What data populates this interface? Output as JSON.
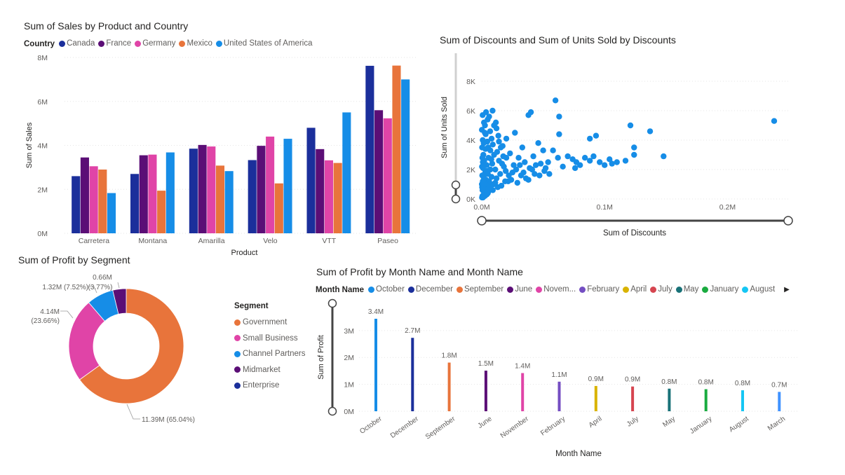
{
  "chart_data": [
    {
      "id": "sales",
      "type": "bar",
      "title": "Sum of Sales by Product and Country",
      "legend_title": "Country",
      "xlabel": "Product",
      "ylabel": "Sum of Sales",
      "categories": [
        "Carretera",
        "Montana",
        "Amarilla",
        "Velo",
        "VTT",
        "Paseo"
      ],
      "ylim": [
        0,
        8000000
      ],
      "yticks": [
        {
          "v": 0,
          "label": "0M"
        },
        {
          "v": 2000000,
          "label": "2M"
        },
        {
          "v": 4000000,
          "label": "4M"
        },
        {
          "v": 6000000,
          "label": "6M"
        },
        {
          "v": 8000000,
          "label": "8M"
        }
      ],
      "series": [
        {
          "name": "Canada",
          "color": "#1b2f9b",
          "values": [
            2600000,
            2700000,
            3850000,
            3330000,
            4800000,
            7620000
          ]
        },
        {
          "name": "France",
          "color": "#5b0e76",
          "values": [
            3450000,
            3550000,
            4020000,
            3980000,
            3830000,
            5600000
          ]
        },
        {
          "name": "Germany",
          "color": "#e044a7",
          "values": [
            3050000,
            3580000,
            3950000,
            4400000,
            3320000,
            5230000
          ]
        },
        {
          "name": "Mexico",
          "color": "#e8743b",
          "values": [
            2900000,
            1940000,
            3080000,
            2270000,
            3200000,
            7630000
          ]
        },
        {
          "name": "United States of America",
          "color": "#168de7",
          "values": [
            1830000,
            3680000,
            2830000,
            4300000,
            5500000,
            7000000
          ]
        }
      ]
    },
    {
      "id": "discounts",
      "type": "scatter",
      "title": "Sum of Discounts and Sum of Units Sold by Discounts",
      "xlabel": "Sum of Discounts",
      "ylabel": "Sum of Units Sold",
      "xlim": [
        0,
        250000
      ],
      "ylim": [
        0,
        9000
      ],
      "xticks": [
        {
          "v": 0,
          "label": "0.0M"
        },
        {
          "v": 100000,
          "label": "0.1M"
        },
        {
          "v": 200000,
          "label": "0.2M"
        }
      ],
      "yticks": [
        {
          "v": 0,
          "label": "0K"
        },
        {
          "v": 2000,
          "label": "2K"
        },
        {
          "v": 4000,
          "label": "4K"
        },
        {
          "v": 6000,
          "label": "6K"
        },
        {
          "v": 8000,
          "label": "8K"
        }
      ],
      "color": "#168de7",
      "points": [
        [
          238000,
          5300
        ],
        [
          148000,
          2900
        ],
        [
          137000,
          4600
        ],
        [
          121000,
          5000
        ],
        [
          124000,
          3500
        ],
        [
          124000,
          3000
        ],
        [
          117000,
          2600
        ],
        [
          110000,
          2500
        ],
        [
          106000,
          2400
        ],
        [
          104000,
          2700
        ],
        [
          100000,
          2300
        ],
        [
          96000,
          2500
        ],
        [
          91000,
          2900
        ],
        [
          93000,
          4300
        ],
        [
          88000,
          4100
        ],
        [
          88000,
          2600
        ],
        [
          84000,
          2800
        ],
        [
          80000,
          2300
        ],
        [
          77000,
          2500
        ],
        [
          76000,
          2100
        ],
        [
          74000,
          2700
        ],
        [
          70000,
          2900
        ],
        [
          66000,
          2200
        ],
        [
          62000,
          2800
        ],
        [
          63000,
          4400
        ],
        [
          58000,
          3300
        ],
        [
          60000,
          6700
        ],
        [
          63000,
          5600
        ],
        [
          54000,
          2500
        ],
        [
          52000,
          2100
        ],
        [
          50000,
          3300
        ],
        [
          48000,
          2400
        ],
        [
          46000,
          3800
        ],
        [
          44000,
          2300
        ],
        [
          42000,
          2900
        ],
        [
          41000,
          2000
        ],
        [
          40000,
          5900
        ],
        [
          38000,
          5700
        ],
        [
          38000,
          1300
        ],
        [
          35000,
          2500
        ],
        [
          33000,
          3500
        ],
        [
          32000,
          1600
        ],
        [
          30000,
          2800
        ],
        [
          29000,
          1100
        ],
        [
          27000,
          4500
        ],
        [
          26000,
          2300
        ],
        [
          24000,
          1300
        ],
        [
          23000,
          3100
        ],
        [
          22000,
          1600
        ],
        [
          20000,
          2800
        ],
        [
          20000,
          4100
        ],
        [
          19000,
          1200
        ],
        [
          18000,
          2200
        ],
        [
          17000,
          3600
        ],
        [
          16000,
          900
        ],
        [
          15000,
          1700
        ],
        [
          14000,
          2600
        ],
        [
          13000,
          800
        ],
        [
          12000,
          4800
        ],
        [
          12000,
          1400
        ],
        [
          11000,
          2000
        ],
        [
          10000,
          5000
        ],
        [
          10000,
          3000
        ],
        [
          9500,
          1000
        ],
        [
          9000,
          600
        ],
        [
          8500,
          2400
        ],
        [
          8000,
          4100
        ],
        [
          8000,
          1500
        ],
        [
          7500,
          900
        ],
        [
          7000,
          3300
        ],
        [
          7000,
          2000
        ],
        [
          6500,
          600
        ],
        [
          6000,
          5600
        ],
        [
          6000,
          1200
        ],
        [
          5500,
          2800
        ],
        [
          5000,
          400
        ],
        [
          5000,
          1700
        ],
        [
          4500,
          900
        ],
        [
          4500,
          3900
        ],
        [
          4000,
          300
        ],
        [
          4000,
          2300
        ],
        [
          3500,
          1300
        ],
        [
          3500,
          5900
        ],
        [
          3000,
          600
        ],
        [
          3000,
          3400
        ],
        [
          2800,
          1800
        ],
        [
          2500,
          200
        ],
        [
          2500,
          4500
        ],
        [
          2200,
          1000
        ],
        [
          2000,
          2600
        ],
        [
          2000,
          700
        ],
        [
          1800,
          5200
        ],
        [
          1500,
          1500
        ],
        [
          1500,
          300
        ],
        [
          1300,
          3000
        ],
        [
          1200,
          900
        ],
        [
          1000,
          2100
        ],
        [
          1000,
          100
        ],
        [
          800,
          4000
        ],
        [
          800,
          1200
        ],
        [
          700,
          5700
        ],
        [
          600,
          600
        ],
        [
          500,
          2800
        ],
        [
          500,
          200
        ],
        [
          400,
          1600
        ],
        [
          300,
          3500
        ],
        [
          300,
          800
        ],
        [
          200,
          2200
        ],
        [
          200,
          100
        ],
        [
          100,
          1000
        ],
        [
          100,
          4700
        ],
        [
          11500,
          5200
        ],
        [
          13500,
          4300
        ],
        [
          15500,
          3500
        ],
        [
          17500,
          2900
        ],
        [
          19500,
          1900
        ],
        [
          21500,
          1200
        ],
        [
          25000,
          1800
        ],
        [
          28000,
          2000
        ],
        [
          31000,
          2300
        ],
        [
          34000,
          1800
        ],
        [
          36000,
          1400
        ],
        [
          39000,
          2100
        ],
        [
          43000,
          1700
        ],
        [
          47000,
          1600
        ],
        [
          51000,
          1900
        ],
        [
          55000,
          1700
        ],
        [
          9000,
          3700
        ],
        [
          11000,
          1100
        ],
        [
          14000,
          3900
        ],
        [
          16500,
          2400
        ],
        [
          6800,
          4600
        ],
        [
          5200,
          3500
        ],
        [
          3200,
          4400
        ],
        [
          2600,
          5000
        ],
        [
          1600,
          3800
        ],
        [
          900,
          2500
        ],
        [
          1900,
          1400
        ],
        [
          4200,
          1900
        ],
        [
          7800,
          2700
        ],
        [
          12500,
          3200
        ],
        [
          8800,
          6000
        ],
        [
          4800,
          5400
        ]
      ]
    },
    {
      "id": "segment",
      "type": "pie",
      "title": "Sum of Profit by Segment",
      "legend_title": "Segment",
      "slices": [
        {
          "name": "Government",
          "value": 11390000,
          "color": "#e8743b",
          "label": "11.39M (65.04%)"
        },
        {
          "name": "Small Business",
          "value": 4140000,
          "color": "#e044a7",
          "label": "4.14M (23.66%)"
        },
        {
          "name": "Channel Partners",
          "value": 1320000,
          "color": "#168de7",
          "label": "1.32M (7.52%)"
        },
        {
          "name": "Midmarket",
          "value": 660000,
          "color": "#5b0e76",
          "label": "0.66M (3.77%)"
        },
        {
          "name": "Enterprise",
          "value": 0,
          "color": "#1b2f9b",
          "label": ""
        }
      ]
    },
    {
      "id": "month",
      "type": "bar",
      "title": "Sum of Profit by Month Name and Month Name",
      "legend_title": "Month Name",
      "xlabel": "Month Name",
      "ylabel": "Sum of Profit",
      "ylim": [
        0,
        3700000
      ],
      "yticks": [
        {
          "v": 0,
          "label": "0M"
        },
        {
          "v": 1000000,
          "label": "1M"
        },
        {
          "v": 2000000,
          "label": "2M"
        },
        {
          "v": 3000000,
          "label": "3M"
        }
      ],
      "categories": [
        "October",
        "December",
        "September",
        "June",
        "November",
        "February",
        "April",
        "July",
        "May",
        "January",
        "August",
        "March"
      ],
      "values": [
        3440000,
        2730000,
        1810000,
        1510000,
        1420000,
        1100000,
        940000,
        920000,
        840000,
        820000,
        780000,
        720000
      ],
      "data_labels": [
        "3.4M",
        "2.7M",
        "1.8M",
        "1.5M",
        "1.4M",
        "1.1M",
        "0.9M",
        "0.9M",
        "0.8M",
        "0.8M",
        "0.8M",
        "0.7M"
      ],
      "colors": [
        "#168de7",
        "#1b2f9b",
        "#e8743b",
        "#5b0e76",
        "#e044a7",
        "#744ec2",
        "#d9b300",
        "#d64550",
        "#197278",
        "#1aab40",
        "#15c6f4",
        "#4092ff"
      ],
      "legend": [
        {
          "name": "October",
          "color": "#168de7"
        },
        {
          "name": "December",
          "color": "#1b2f9b"
        },
        {
          "name": "September",
          "color": "#e8743b"
        },
        {
          "name": "June",
          "color": "#5b0e76"
        },
        {
          "name": "Novem...",
          "color": "#e044a7"
        },
        {
          "name": "February",
          "color": "#744ec2"
        },
        {
          "name": "April",
          "color": "#d9b300"
        },
        {
          "name": "July",
          "color": "#d64550"
        },
        {
          "name": "May",
          "color": "#197278"
        },
        {
          "name": "January",
          "color": "#1aab40"
        },
        {
          "name": "August",
          "color": "#15c6f4"
        }
      ]
    }
  ]
}
